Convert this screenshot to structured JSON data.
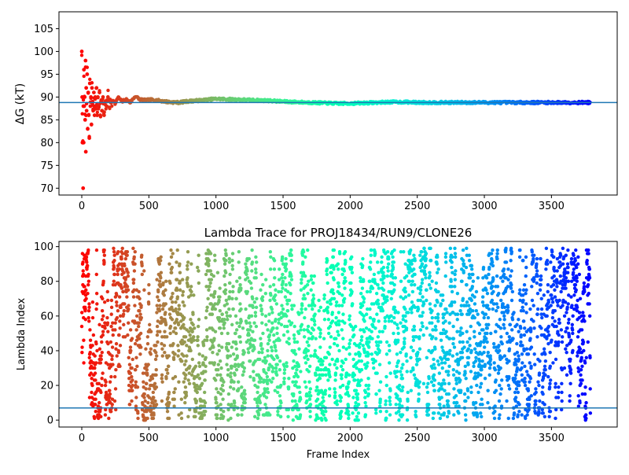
{
  "chart_data": [
    {
      "type": "scatter",
      "title": "",
      "xlabel": "",
      "ylabel": "ΔG (kT)",
      "xlim": [
        -170,
        3990
      ],
      "ylim": [
        68.5,
        108.7
      ],
      "xticks": [
        0,
        500,
        1000,
        1500,
        2000,
        2500,
        3000,
        3500
      ],
      "yticks": [
        70,
        75,
        80,
        85,
        90,
        95,
        100,
        105
      ],
      "hline": 88.8,
      "hline_color": "#1f77b4",
      "colormap": "rainbow-reversed",
      "n_frames": 3790,
      "series_description": "Estimate converges from scatter (70-100) in first ~200 frames to ~88.8 kT",
      "points": [
        [
          0,
          100
        ],
        [
          3,
          90
        ],
        [
          5,
          80
        ],
        [
          8,
          80
        ],
        [
          10,
          70
        ],
        [
          12,
          88
        ],
        [
          14,
          80
        ],
        [
          16,
          96
        ],
        [
          18,
          88
        ],
        [
          22,
          90
        ],
        [
          25,
          85
        ],
        [
          28,
          98
        ],
        [
          30,
          78
        ],
        [
          33,
          92
        ],
        [
          36,
          87
        ],
        [
          40,
          95
        ],
        [
          44,
          83
        ],
        [
          48,
          91
        ],
        [
          52,
          86
        ],
        [
          56,
          81
        ],
        [
          60,
          93
        ],
        [
          64,
          88
        ],
        [
          68,
          90
        ],
        [
          72,
          84
        ],
        [
          76,
          92
        ],
        [
          80,
          89
        ],
        [
          85,
          87
        ],
        [
          90,
          91
        ],
        [
          95,
          86
        ],
        [
          100,
          90
        ],
        [
          105,
          88
        ],
        [
          110,
          92
        ],
        [
          115,
          86
        ],
        [
          120,
          90
        ],
        [
          126,
          88
        ],
        [
          132,
          91
        ],
        [
          138,
          86
        ],
        [
          144,
          89
        ],
        [
          150,
          87
        ],
        [
          158,
          90
        ],
        [
          166,
          86
        ],
        [
          175,
          89
        ],
        [
          185,
          88
        ],
        [
          195,
          90
        ],
        [
          210,
          88
        ],
        [
          230,
          89.5
        ],
        [
          250,
          88.5
        ],
        [
          270,
          90
        ],
        [
          300,
          89
        ],
        [
          330,
          89.5
        ],
        [
          360,
          88.8
        ],
        [
          400,
          90.2
        ],
        [
          430,
          89.5
        ],
        [
          470,
          89.3
        ],
        [
          520,
          89.4
        ],
        [
          580,
          89.2
        ],
        [
          650,
          88.9
        ],
        [
          720,
          88.8
        ],
        [
          800,
          89.1
        ],
        [
          900,
          89.3
        ],
        [
          1000,
          89.6
        ],
        [
          1100,
          89.5
        ],
        [
          1200,
          89.4
        ],
        [
          1300,
          89.3
        ],
        [
          1400,
          89.2
        ],
        [
          1500,
          89.0
        ],
        [
          1600,
          88.9
        ],
        [
          1700,
          88.8
        ],
        [
          1800,
          88.7
        ],
        [
          1900,
          88.6
        ],
        [
          2000,
          88.6
        ],
        [
          2100,
          88.7
        ],
        [
          2200,
          88.8
        ],
        [
          2300,
          88.9
        ],
        [
          2400,
          88.9
        ],
        [
          2500,
          88.8
        ],
        [
          2600,
          88.8
        ],
        [
          2700,
          88.8
        ],
        [
          2800,
          88.8
        ],
        [
          2900,
          88.8
        ],
        [
          3000,
          88.8
        ],
        [
          3100,
          88.8
        ],
        [
          3200,
          88.8
        ],
        [
          3300,
          88.8
        ],
        [
          3400,
          88.8
        ],
        [
          3500,
          88.8
        ],
        [
          3600,
          88.8
        ],
        [
          3700,
          88.8
        ],
        [
          3790,
          88.8
        ]
      ]
    },
    {
      "type": "scatter",
      "title": "Lambda Trace for PROJ18434/RUN9/CLONE26",
      "xlabel": "Frame Index",
      "ylabel": "Lambda Index",
      "xlim": [
        -170,
        3990
      ],
      "ylim": [
        -4,
        103
      ],
      "xticks": [
        0,
        500,
        1000,
        1500,
        2000,
        2500,
        3000,
        3500
      ],
      "yticks": [
        0,
        20,
        40,
        60,
        80,
        100
      ],
      "hline": 7,
      "hline_color": "#1f77b4",
      "colormap": "rainbow-reversed",
      "n_frames": 3790,
      "lambda_range": [
        0,
        99
      ],
      "series_description": "Random walk of lambda index over frames, dense uniform scatter across 0-99"
    }
  ]
}
